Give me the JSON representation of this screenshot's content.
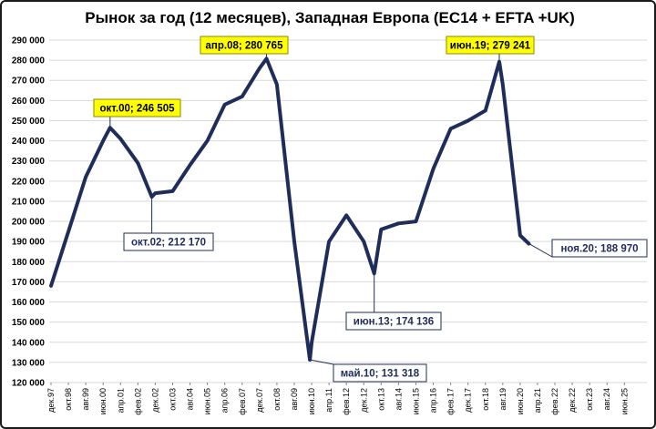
{
  "chart_data": {
    "type": "line",
    "title": "Рынок за год (12 месяцев), Западная Европа (ЕС14 + EFTA +UK)",
    "xlabel": "",
    "ylabel": "",
    "ylim": [
      120000,
      290000
    ],
    "y_ticks": [
      "120 000",
      "130 000",
      "140 000",
      "150 000",
      "160 000",
      "170 000",
      "180 000",
      "190 000",
      "200 000",
      "210 000",
      "220 000",
      "230 000",
      "240 000",
      "250 000",
      "260 000",
      "270 000",
      "280 000",
      "290 000"
    ],
    "x_ticks": [
      "дек.97",
      "окт.98",
      "авг.99",
      "июн.00",
      "апр.01",
      "фев.02",
      "дек.02",
      "окт.03",
      "авг.04",
      "июн.05",
      "апр.06",
      "фев.07",
      "дек.07",
      "окт.08",
      "авг.09",
      "июн.10",
      "апр.11",
      "фев.12",
      "дек.12",
      "окт.13",
      "авг.14",
      "июн.15",
      "апр.16",
      "фев.17",
      "дек.17",
      "окт.18",
      "авг.19",
      "июн.20",
      "апр.21",
      "фев.22",
      "дек.22",
      "окт.23",
      "авг.24",
      "июн.25"
    ],
    "grid": true,
    "series": [
      {
        "x": [
          "дек.97",
          "окт.98",
          "авг.99",
          "июн.00",
          "окт.00",
          "апр.01",
          "фев.02",
          "окт.02",
          "дек.02",
          "окт.03",
          "авг.04",
          "июн.05",
          "апр.06",
          "фев.07",
          "дек.07",
          "апр.08",
          "окт.08",
          "авг.09",
          "июн.10",
          "май.10",
          "апр.11",
          "фев.12",
          "дек.12",
          "июн.13",
          "окт.13",
          "авг.14",
          "июн.15",
          "апр.16",
          "фев.17",
          "дек.17",
          "окт.18",
          "июн.19",
          "авг.19",
          "июн.20",
          "ноя.20"
        ],
        "values": [
          168000,
          195000,
          222000,
          240000,
          246505,
          241000,
          229000,
          212170,
          214000,
          215000,
          228000,
          240000,
          258000,
          262000,
          276000,
          280765,
          268000,
          190000,
          140000,
          131318,
          190000,
          203000,
          190000,
          174136,
          196000,
          199000,
          200000,
          226000,
          246000,
          250000,
          255000,
          279241,
          268000,
          193000,
          188970
        ]
      }
    ],
    "annotations": [
      {
        "text": "окт.00; 246 505",
        "style": "yellow"
      },
      {
        "text": "окт.02; 212 170",
        "style": "white"
      },
      {
        "text": "апр.08; 280 765",
        "style": "yellow"
      },
      {
        "text": "май.10; 131 318",
        "style": "white"
      },
      {
        "text": "июн.13; 174 136",
        "style": "white"
      },
      {
        "text": "июн.19; 279 241",
        "style": "yellow"
      },
      {
        "text": "ноя.20;  188 970",
        "style": "white"
      }
    ],
    "colors": {
      "line": "#1f2d5a",
      "callout_yellow": "#ffff00",
      "grid": "#d9d9d9"
    }
  }
}
